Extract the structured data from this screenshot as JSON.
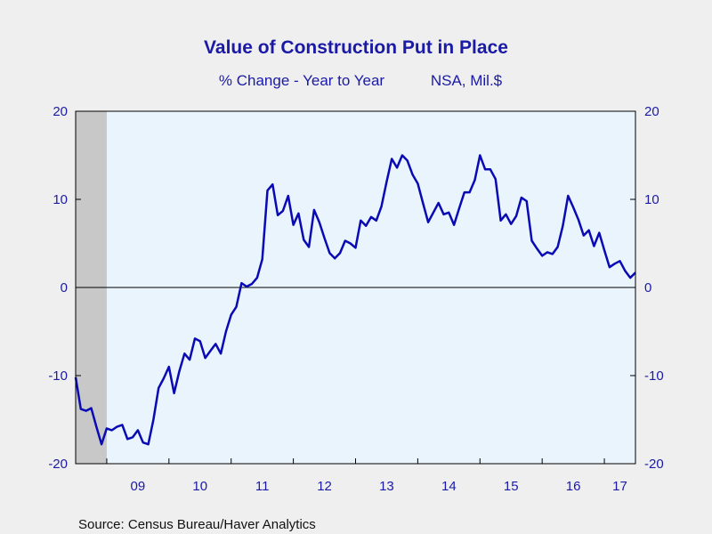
{
  "chart_data": {
    "type": "line",
    "title": "Value of Construction Put in Place",
    "subtitle_left": "% Change - Year to Year",
    "subtitle_right": "NSA, Mil.$",
    "source": "Source:  Census Bureau/Haver Analytics",
    "x_tick_labels": [
      "09",
      "10",
      "11",
      "12",
      "13",
      "14",
      "15",
      "16",
      "17"
    ],
    "x_range_years": [
      2008.5,
      2017.5
    ],
    "ylim": [
      -20,
      20
    ],
    "yticks": [
      -20,
      -10,
      0,
      10,
      20
    ],
    "y_tick_labels": [
      "-20",
      "-10",
      "0",
      "10",
      "20"
    ],
    "recession_shading": {
      "start": 2008.5,
      "end": 2009.0
    },
    "line_color": "#0a0ab4",
    "plot_background": "#eaf4fd",
    "recession_color": "#c8c8c8",
    "series": [
      {
        "x": [
          2008.5,
          2008.583,
          2008.667,
          2008.75,
          2008.833,
          2008.917,
          2009.0,
          2009.083,
          2009.167,
          2009.25,
          2009.333,
          2009.417,
          2009.5,
          2009.583,
          2009.667,
          2009.75,
          2009.833,
          2009.917,
          2010.0,
          2010.083,
          2010.167,
          2010.25,
          2010.333,
          2010.417,
          2010.5,
          2010.583,
          2010.667,
          2010.75,
          2010.833,
          2010.917,
          2011.0,
          2011.083,
          2011.167,
          2011.25,
          2011.333,
          2011.417,
          2011.5,
          2011.583,
          2011.667,
          2011.75,
          2011.833,
          2011.917,
          2012.0,
          2012.083,
          2012.167,
          2012.25,
          2012.333,
          2012.417,
          2012.5,
          2012.583,
          2012.667,
          2012.75,
          2012.833,
          2012.917,
          2013.0,
          2013.083,
          2013.167,
          2013.25,
          2013.333,
          2013.417,
          2013.5,
          2013.583,
          2013.667,
          2013.75,
          2013.833,
          2013.917,
          2014.0,
          2014.083,
          2014.167,
          2014.25,
          2014.333,
          2014.417,
          2014.5,
          2014.583,
          2014.667,
          2014.75,
          2014.833,
          2014.917,
          2015.0,
          2015.083,
          2015.167,
          2015.25,
          2015.333,
          2015.417,
          2015.5,
          2015.583,
          2015.667,
          2015.75,
          2015.833,
          2015.917,
          2016.0,
          2016.083,
          2016.167,
          2016.25,
          2016.333,
          2016.417,
          2016.5,
          2016.583,
          2016.667,
          2016.75,
          2016.833,
          2016.917,
          2017.0,
          2017.083,
          2017.167,
          2017.25,
          2017.333,
          2017.417,
          2017.5
        ],
        "y": [
          -10.2,
          -13.8,
          -14.0,
          -13.7,
          -15.8,
          -17.8,
          -16.0,
          -16.2,
          -15.8,
          -15.6,
          -17.2,
          -17.0,
          -16.2,
          -17.6,
          -17.8,
          -15.0,
          -11.4,
          -10.3,
          -9.0,
          -12.0,
          -9.5,
          -7.5,
          -8.2,
          -5.8,
          -6.1,
          -8.0,
          -7.2,
          -6.4,
          -7.5,
          -5.0,
          -3.1,
          -2.2,
          0.5,
          0.1,
          0.4,
          1.1,
          3.2,
          11.0,
          11.7,
          8.2,
          8.7,
          10.4,
          7.1,
          8.4,
          5.4,
          4.6,
          8.8,
          7.4,
          5.6,
          3.9,
          3.3,
          3.9,
          5.3,
          5.0,
          4.5,
          7.6,
          7.0,
          8.0,
          7.6,
          9.2,
          12.0,
          14.6,
          13.6,
          15.0,
          14.4,
          12.8,
          11.8,
          9.6,
          7.4,
          8.5,
          9.6,
          8.3,
          8.5,
          7.1,
          9.0,
          10.8,
          10.8,
          12.2,
          15.0,
          13.4,
          13.4,
          12.3,
          7.6,
          8.3,
          7.2,
          8.1,
          10.2,
          9.8,
          5.3,
          4.4,
          3.6,
          4.0,
          3.8,
          4.6,
          7.0,
          10.4,
          9.1,
          7.7,
          5.9,
          6.5,
          4.7,
          6.2,
          4.2,
          2.3,
          2.7,
          3.0,
          1.9,
          1.1,
          1.7
        ]
      }
    ]
  }
}
